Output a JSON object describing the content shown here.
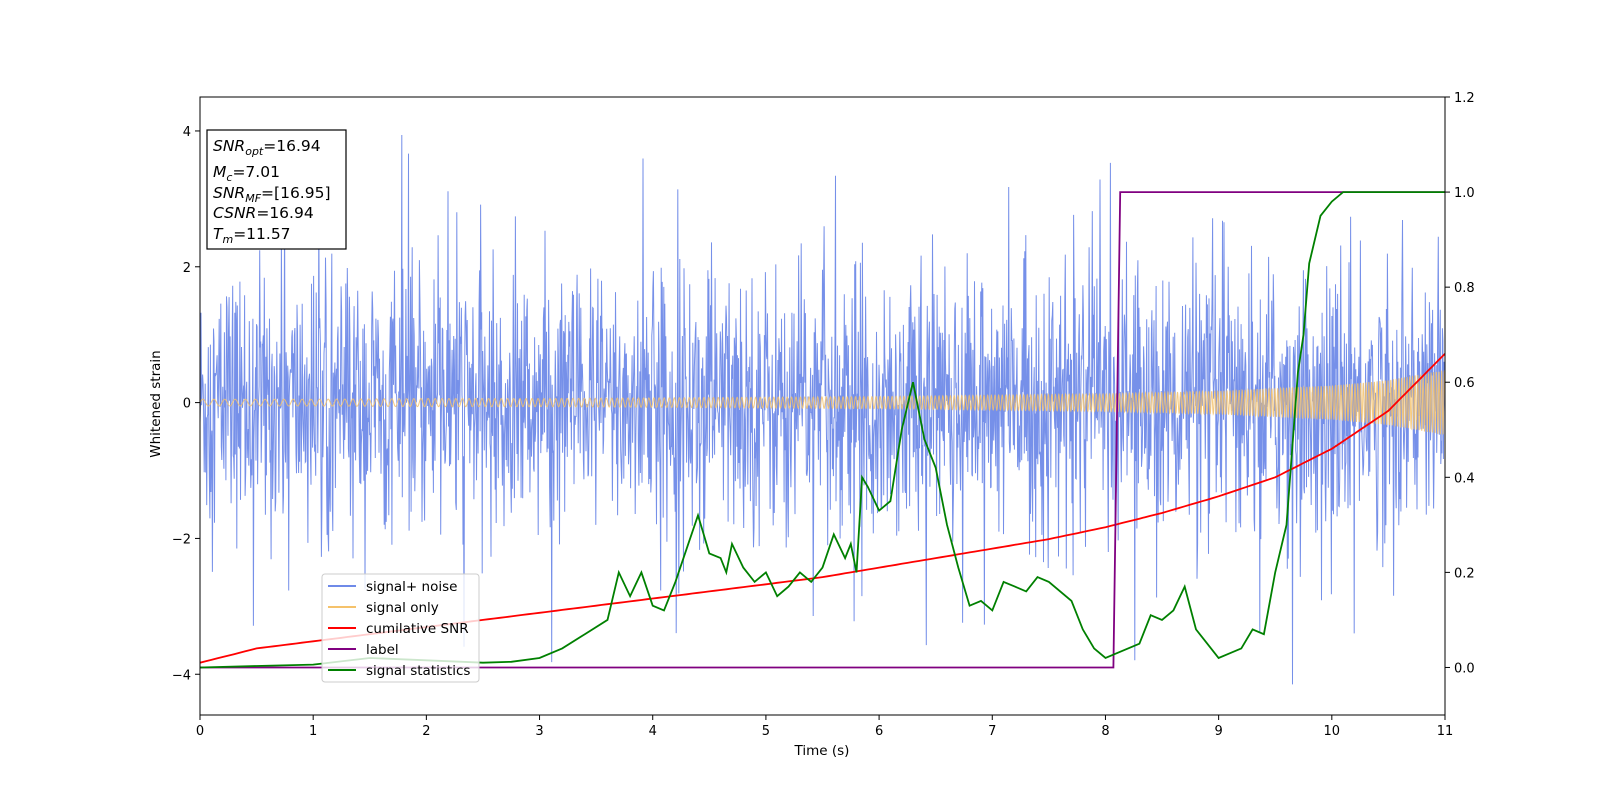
{
  "chart_data": {
    "type": "line",
    "xlabel": "Time (s)",
    "ylabel": "Whitened strain",
    "xlim": [
      0,
      11
    ],
    "ylim_left": [
      -4.6,
      4.5
    ],
    "ylim_right": [
      -0.1,
      1.2
    ],
    "x_ticks": [
      0,
      1,
      2,
      3,
      4,
      5,
      6,
      7,
      8,
      9,
      10,
      11
    ],
    "y_left_ticks": [
      -4,
      -2,
      0,
      2,
      4
    ],
    "y_right_ticks": [
      "0.0",
      "0.2",
      "0.4",
      "0.6",
      "0.8",
      "1.0",
      "1.2"
    ],
    "grid": false,
    "legend_position": "lower-left",
    "series": [
      {
        "name": "signal+ noise",
        "axis": "left",
        "color": "#6f8ae8",
        "description_values": {
          "typical_range": [
            -2.6,
            2.6
          ],
          "spikes_max": 4.1,
          "spikes_min": -4.15
        }
      },
      {
        "name": "signal only",
        "axis": "left",
        "color": "#f5c26b",
        "envelope": {
          "x": [
            0,
            1,
            2,
            3,
            4,
            5,
            6,
            7,
            8,
            9,
            10,
            10.5,
            11
          ],
          "amplitude": [
            0.05,
            0.05,
            0.06,
            0.06,
            0.07,
            0.08,
            0.09,
            0.11,
            0.13,
            0.17,
            0.25,
            0.33,
            0.48
          ]
        }
      },
      {
        "name": "cumilative SNR",
        "axis": "right",
        "color": "#ff0000",
        "x": [
          0,
          0.5,
          1,
          1.5,
          2,
          2.5,
          3,
          3.5,
          4,
          4.5,
          5,
          5.5,
          6,
          6.5,
          7,
          7.5,
          8,
          8.5,
          9,
          9.5,
          10,
          10.5,
          11
        ],
        "y": [
          0.01,
          0.04,
          0.055,
          0.07,
          0.085,
          0.1,
          0.115,
          0.13,
          0.145,
          0.16,
          0.175,
          0.19,
          0.21,
          0.23,
          0.25,
          0.27,
          0.295,
          0.325,
          0.36,
          0.4,
          0.46,
          0.54,
          0.66
        ]
      },
      {
        "name": "label",
        "axis": "right",
        "color": "#800080",
        "x": [
          0,
          8.07,
          8.13,
          11
        ],
        "y": [
          0,
          0,
          1,
          1
        ]
      },
      {
        "name": "signal statistics",
        "axis": "right",
        "color": "#008000",
        "x": [
          0,
          0.5,
          1,
          1.5,
          2,
          2.5,
          2.75,
          3,
          3.2,
          3.4,
          3.6,
          3.7,
          3.8,
          3.9,
          4.0,
          4.1,
          4.2,
          4.3,
          4.4,
          4.45,
          4.5,
          4.6,
          4.65,
          4.7,
          4.8,
          4.9,
          5.0,
          5.1,
          5.2,
          5.3,
          5.4,
          5.5,
          5.6,
          5.7,
          5.75,
          5.8,
          5.85,
          5.9,
          6.0,
          6.1,
          6.2,
          6.3,
          6.4,
          6.5,
          6.6,
          6.7,
          6.8,
          6.9,
          7.0,
          7.1,
          7.2,
          7.3,
          7.4,
          7.5,
          7.7,
          7.8,
          7.9,
          8.0,
          8.1,
          8.3,
          8.4,
          8.5,
          8.6,
          8.7,
          8.8,
          8.9,
          9.0,
          9.1,
          9.2,
          9.3,
          9.4,
          9.5,
          9.6,
          9.7,
          9.75,
          9.8,
          9.9,
          10.0,
          10.1,
          10.2,
          10.4,
          10.6,
          11.0
        ],
        "y": [
          0,
          0.003,
          0.006,
          0.02,
          0.015,
          0.01,
          0.012,
          0.02,
          0.04,
          0.07,
          0.1,
          0.2,
          0.15,
          0.2,
          0.13,
          0.12,
          0.18,
          0.25,
          0.32,
          0.28,
          0.24,
          0.23,
          0.2,
          0.26,
          0.21,
          0.18,
          0.2,
          0.15,
          0.17,
          0.2,
          0.18,
          0.21,
          0.28,
          0.23,
          0.26,
          0.2,
          0.4,
          0.38,
          0.33,
          0.35,
          0.5,
          0.6,
          0.48,
          0.42,
          0.3,
          0.21,
          0.13,
          0.14,
          0.12,
          0.18,
          0.17,
          0.16,
          0.19,
          0.18,
          0.14,
          0.08,
          0.04,
          0.02,
          0.03,
          0.05,
          0.11,
          0.1,
          0.12,
          0.17,
          0.08,
          0.05,
          0.02,
          0.03,
          0.04,
          0.08,
          0.07,
          0.2,
          0.3,
          0.62,
          0.7,
          0.85,
          0.95,
          0.98,
          1.0,
          1.0,
          1.0,
          1.0,
          1.0
        ]
      }
    ]
  },
  "info_box": {
    "snr_opt": {
      "main": "SNR",
      "sub": "opt",
      "value": "=16.94"
    },
    "mc": {
      "main": "M",
      "sub": "c",
      "value": "=7.01"
    },
    "snr_mf": {
      "main": "SNR",
      "sub": "MF",
      "value": "=[16.95]"
    },
    "csnr": {
      "main": "CSNR",
      "value": "=16.94"
    },
    "tm": {
      "main": "T",
      "sub": "m",
      "value": "=11.57"
    }
  },
  "legend": [
    {
      "label": "signal+ noise",
      "color": "#6f8ae8"
    },
    {
      "label": "signal only",
      "color": "#f5c26b"
    },
    {
      "label": "cumilative SNR",
      "color": "#ff0000"
    },
    {
      "label": "label",
      "color": "#800080"
    },
    {
      "label": "signal statistics",
      "color": "#008000"
    }
  ]
}
